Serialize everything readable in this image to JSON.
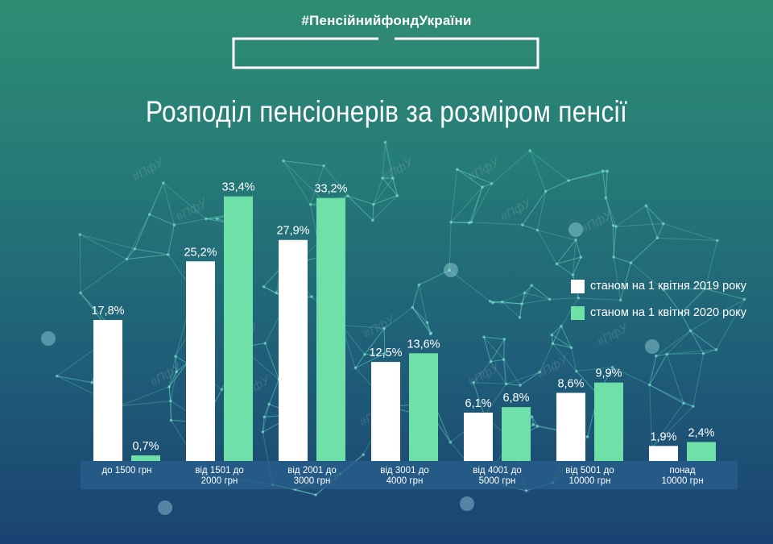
{
  "hashtag": "#ПенсійнийфондУкраїни",
  "watermark": "#ПфУ",
  "colors": {
    "series2019": "#ffffff",
    "series2020": "#6ee0a8",
    "band": "#2a5f8c"
  },
  "chart_data": {
    "type": "bar",
    "title": "Розподіл пенсіонерів за розміром пенсії",
    "xlabel": "",
    "ylabel": "",
    "ylim": [
      0,
      36
    ],
    "grid": false,
    "legend_position": "right",
    "categories": [
      "до 1500 грн",
      "від 1501 до\n2000 грн",
      "від 2001 до\n3000 грн",
      "від 3001 до\n4000 грн",
      "від 4001 до\n5000 грн",
      "від 5001 до\n10000 грн",
      "понад\n10000 грн"
    ],
    "series": [
      {
        "name": "станом на 1 квітня 2019 року",
        "values": [
          17.8,
          25.2,
          27.9,
          12.5,
          6.1,
          8.6,
          1.9
        ],
        "labels": [
          "17,8%",
          "25,2%",
          "27,9%",
          "12,5%",
          "6,1%",
          "8,6%",
          "1,9%"
        ]
      },
      {
        "name": "станом на 1 квітня 2020 року",
        "values": [
          0.7,
          33.4,
          33.2,
          13.6,
          6.8,
          9.9,
          2.4
        ],
        "labels": [
          "0,7%",
          "33,4%",
          "33,2%",
          "13,6%",
          "6,8%",
          "9,9%",
          "2,4%"
        ]
      }
    ]
  }
}
